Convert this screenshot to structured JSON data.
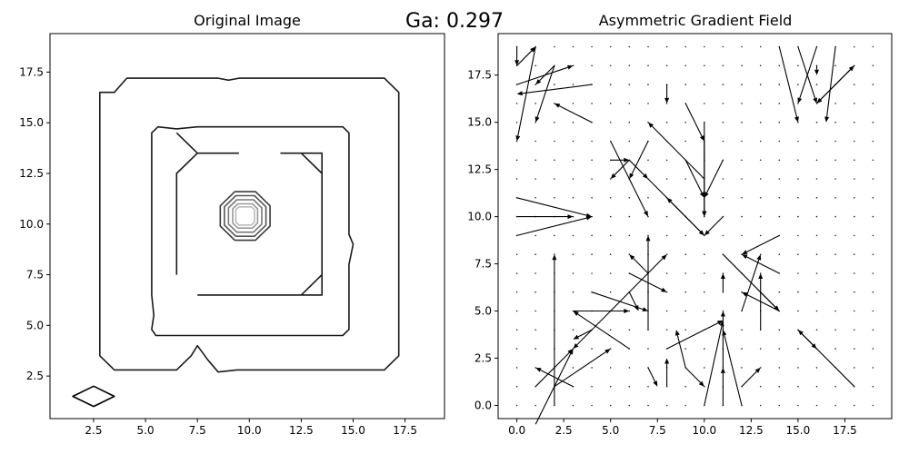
{
  "suptitle": "Ga: 0.297",
  "chart_data": [
    {
      "type": "contour",
      "title": "Original Image",
      "xlabel": "",
      "ylabel": "",
      "xlim": [
        0.4,
        19.4
      ],
      "ylim": [
        0.4,
        19.4
      ],
      "xticks": [
        2.5,
        5.0,
        7.5,
        10.0,
        12.5,
        15.0,
        17.5
      ],
      "yticks": [
        2.5,
        5.0,
        7.5,
        10.0,
        12.5,
        15.0,
        17.5
      ],
      "grid": false,
      "paths": [
        {
          "name": "outer-frame",
          "color": "#1a1a1a",
          "closed": true,
          "points": [
            [
              3.5,
              16.5
            ],
            [
              4.1,
              17.2
            ],
            [
              8.5,
              17.2
            ],
            [
              9,
              17.1
            ],
            [
              9.5,
              17.2
            ],
            [
              16.5,
              17.2
            ],
            [
              17.2,
              16.5
            ],
            [
              17.2,
              3.5
            ],
            [
              16.5,
              2.8
            ],
            [
              10,
              2.8
            ],
            [
              9.4,
              2.8
            ],
            [
              8.5,
              2.7
            ],
            [
              8,
              3.3
            ],
            [
              7.5,
              4.0
            ],
            [
              7.2,
              3.5
            ],
            [
              6.5,
              2.8
            ],
            [
              3.5,
              2.8
            ],
            [
              2.8,
              3.5
            ],
            [
              2.8,
              16.5
            ]
          ]
        },
        {
          "name": "middle-frame",
          "color": "#1a1a1a",
          "closed": true,
          "points": [
            [
              5.3,
              14.5
            ],
            [
              5.6,
              14.8
            ],
            [
              6.5,
              14.7
            ],
            [
              7.5,
              14.8
            ],
            [
              14.5,
              14.8
            ],
            [
              14.8,
              14.5
            ],
            [
              14.8,
              9.5
            ],
            [
              15.0,
              9
            ],
            [
              14.8,
              8.0
            ],
            [
              14.8,
              4.8
            ],
            [
              14.5,
              4.5
            ],
            [
              5.5,
              4.5
            ],
            [
              5.3,
              4.8
            ],
            [
              5.4,
              5.5
            ],
            [
              5.3,
              6.5
            ],
            [
              5.3,
              14.5
            ]
          ]
        },
        {
          "name": "inner-left-bracket",
          "color": "#1a1a1a",
          "closed": false,
          "points": [
            [
              9.5,
              13.5
            ],
            [
              7.5,
              13.5
            ],
            [
              6.5,
              12.5
            ],
            [
              6.5,
              7.5
            ]
          ]
        },
        {
          "name": "inner-left-diagonal",
          "color": "#1a1a1a",
          "closed": false,
          "points": [
            [
              6.5,
              14.5
            ],
            [
              7.5,
              13.5
            ]
          ]
        },
        {
          "name": "inner-right-bracket",
          "color": "#1a1a1a",
          "closed": false,
          "points": [
            [
              11.5,
              13.5
            ],
            [
              13.5,
              13.5
            ],
            [
              13.5,
              6.5
            ],
            [
              7.5,
              6.5
            ]
          ]
        },
        {
          "name": "inner-right-diagonal-top",
          "color": "#1a1a1a",
          "closed": false,
          "points": [
            [
              12.5,
              13.5
            ],
            [
              13.5,
              12.5
            ]
          ]
        },
        {
          "name": "inner-right-diagonal-bottom",
          "color": "#1a1a1a",
          "closed": false,
          "points": [
            [
              12.5,
              6.5
            ],
            [
              13.5,
              7.5
            ]
          ]
        },
        {
          "name": "center-ring-1",
          "color": "#3a3a3a",
          "closed": true,
          "points": [
            [
              8.6,
              10.9
            ],
            [
              9.3,
              11.6
            ],
            [
              10.3,
              11.6
            ],
            [
              11.0,
              10.9
            ],
            [
              11.0,
              9.9
            ],
            [
              10.3,
              9.2
            ],
            [
              9.3,
              9.2
            ],
            [
              8.6,
              9.9
            ]
          ]
        },
        {
          "name": "center-ring-2",
          "color": "#555555",
          "closed": true,
          "points": [
            [
              8.8,
              10.85
            ],
            [
              9.35,
              11.4
            ],
            [
              10.25,
              11.4
            ],
            [
              10.8,
              10.85
            ],
            [
              10.8,
              9.95
            ],
            [
              10.25,
              9.4
            ],
            [
              9.35,
              9.4
            ],
            [
              8.8,
              9.95
            ]
          ]
        },
        {
          "name": "center-ring-3",
          "color": "#777777",
          "closed": true,
          "points": [
            [
              9.0,
              10.8
            ],
            [
              9.4,
              11.2
            ],
            [
              10.2,
              11.2
            ],
            [
              10.6,
              10.8
            ],
            [
              10.6,
              10.0
            ],
            [
              10.2,
              9.6
            ],
            [
              9.4,
              9.6
            ],
            [
              9.0,
              10.0
            ]
          ]
        },
        {
          "name": "center-ring-4",
          "color": "#999999",
          "closed": true,
          "points": [
            [
              9.2,
              10.75
            ],
            [
              9.45,
              11.0
            ],
            [
              10.15,
              11.0
            ],
            [
              10.4,
              10.75
            ],
            [
              10.4,
              10.05
            ],
            [
              10.15,
              9.8
            ],
            [
              9.45,
              9.8
            ],
            [
              9.2,
              10.05
            ]
          ]
        },
        {
          "name": "center-ring-5",
          "color": "#bbbbbb",
          "closed": true,
          "points": [
            [
              9.35,
              10.7
            ],
            [
              9.5,
              10.85
            ],
            [
              10.1,
              10.85
            ],
            [
              10.25,
              10.7
            ],
            [
              10.25,
              10.1
            ],
            [
              10.1,
              9.95
            ],
            [
              9.5,
              9.95
            ],
            [
              9.35,
              10.1
            ]
          ]
        },
        {
          "name": "corner-diamond",
          "color": "#000000",
          "closed": true,
          "points": [
            [
              1.5,
              1.5
            ],
            [
              2.5,
              2.0
            ],
            [
              3.5,
              1.5
            ],
            [
              2.5,
              1.0
            ]
          ]
        }
      ]
    },
    {
      "type": "quiver",
      "title": "Asymmetric Gradient Field",
      "xlabel": "",
      "ylabel": "",
      "xlim": [
        -1.0,
        20.0
      ],
      "ylim": [
        -0.7,
        19.7
      ],
      "xticks": [
        0.0,
        2.5,
        5.0,
        7.5,
        10.0,
        12.5,
        15.0,
        17.5
      ],
      "yticks": [
        0.0,
        2.5,
        5.0,
        7.5,
        10.0,
        12.5,
        15.0,
        17.5
      ],
      "grid": false,
      "grid_points": {
        "x": [
          0,
          19,
          1
        ],
        "y": [
          0,
          19,
          1
        ]
      },
      "arrows": [
        [
          0,
          19,
          0,
          -1
        ],
        [
          0,
          18,
          1,
          1
        ],
        [
          0,
          17,
          3,
          1
        ],
        [
          2,
          18,
          -1,
          -1
        ],
        [
          1,
          19,
          -1,
          -5
        ],
        [
          2,
          18,
          -1,
          -3
        ],
        [
          4,
          17,
          -4,
          -0.5
        ],
        [
          4,
          15,
          -2,
          1
        ],
        [
          0,
          11,
          4,
          -1
        ],
        [
          0,
          10,
          3,
          0
        ],
        [
          0,
          9,
          4,
          1
        ],
        [
          2,
          0,
          0,
          8
        ],
        [
          1,
          1,
          2,
          2
        ],
        [
          3,
          1,
          -2,
          1
        ],
        [
          1,
          -1,
          2,
          4
        ],
        [
          2,
          1,
          3,
          2
        ],
        [
          3,
          5,
          3,
          0
        ],
        [
          5,
          5,
          -2,
          -2
        ],
        [
          6,
          3,
          -3,
          2
        ],
        [
          4,
          6,
          3,
          -1
        ],
        [
          4,
          4,
          -1,
          -0.5
        ],
        [
          5,
          14,
          2,
          -4
        ],
        [
          6,
          13,
          -1,
          -1
        ],
        [
          7,
          14,
          -1,
          -2
        ],
        [
          5,
          13,
          1,
          0
        ],
        [
          6,
          13,
          1,
          -1
        ],
        [
          7,
          4,
          0,
          5
        ],
        [
          7,
          7,
          -1,
          1
        ],
        [
          6,
          7,
          2,
          -1
        ],
        [
          6,
          6,
          0.5,
          -1
        ],
        [
          5,
          5,
          3,
          3
        ],
        [
          7,
          12,
          3,
          -3
        ],
        [
          10,
          12,
          -3,
          3
        ],
        [
          10,
          9,
          -2,
          2
        ],
        [
          8,
          17,
          0,
          -1
        ],
        [
          9,
          16,
          1,
          -2
        ],
        [
          9,
          13,
          1,
          -2
        ],
        [
          10,
          11,
          0,
          -1
        ],
        [
          10,
          15,
          0,
          -5
        ],
        [
          10,
          14,
          0,
          -3
        ],
        [
          11,
          13,
          -1,
          -2
        ],
        [
          11,
          10,
          -1,
          -1
        ],
        [
          8,
          3,
          3,
          1.5
        ],
        [
          9,
          2,
          -0.5,
          2
        ],
        [
          10,
          0,
          1,
          4.5
        ],
        [
          11,
          0,
          0,
          2
        ],
        [
          11,
          2,
          0,
          3
        ],
        [
          12,
          0,
          -1,
          4
        ],
        [
          7,
          2,
          0.5,
          -1
        ],
        [
          8,
          1,
          0,
          1.5
        ],
        [
          9,
          2,
          1,
          -1
        ],
        [
          12,
          1,
          1,
          1
        ],
        [
          11,
          6,
          0,
          1
        ],
        [
          12,
          5,
          1,
          3
        ],
        [
          13,
          4,
          0,
          3
        ],
        [
          11,
          8,
          3,
          -3
        ],
        [
          14,
          9,
          -2,
          -1
        ],
        [
          14,
          7,
          -2,
          1
        ],
        [
          14,
          5,
          -2,
          1
        ],
        [
          13,
          6,
          1,
          -1
        ],
        [
          14,
          19,
          1,
          -4
        ],
        [
          15,
          19,
          1,
          -3
        ],
        [
          16,
          18,
          0,
          -0.5
        ],
        [
          16,
          19,
          -1,
          -3
        ],
        [
          17,
          19,
          -0.5,
          -4
        ],
        [
          16,
          16,
          2,
          2
        ],
        [
          18,
          18,
          -2,
          -2
        ],
        [
          15,
          4,
          1,
          -1
        ],
        [
          18,
          1,
          -3,
          3
        ]
      ]
    }
  ]
}
